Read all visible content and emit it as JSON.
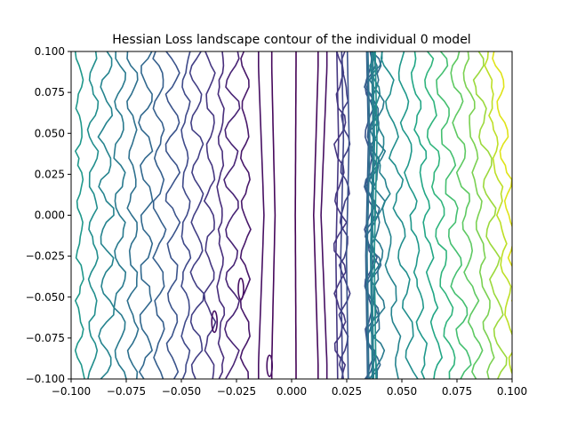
{
  "chart_data": {
    "type": "contour",
    "title": "Hessian Loss landscape contour of the individual 0 model",
    "xlabel": "",
    "ylabel": "",
    "xlim": [
      -0.1,
      0.1
    ],
    "ylim": [
      -0.1,
      0.1
    ],
    "grid": false,
    "colormap": "viridis",
    "x_ticks": [
      -0.1,
      -0.075,
      -0.05,
      -0.025,
      0.0,
      0.025,
      0.05,
      0.075,
      0.1
    ],
    "x_tick_labels": [
      "−0.100",
      "−0.075",
      "−0.050",
      "−0.025",
      "0.000",
      "0.025",
      "0.050",
      "0.075",
      "0.100"
    ],
    "y_ticks": [
      -0.1,
      -0.075,
      -0.05,
      -0.025,
      0.0,
      0.025,
      0.05,
      0.075,
      0.1
    ],
    "y_tick_labels": [
      "−0.100",
      "−0.075",
      "−0.050",
      "−0.025",
      "0.000",
      "0.025",
      "0.050",
      "0.075",
      "0.100"
    ],
    "contour_levels": [
      {
        "level": 0.0,
        "x_values": [
          0.002
        ],
        "color": "#440154"
      },
      {
        "level": 0.05,
        "x_values": [
          -0.009,
          0.012
        ],
        "color": "#46085c"
      },
      {
        "level": 0.1,
        "x_values": [
          -0.015,
          0.016
        ],
        "color": "#471063"
      },
      {
        "level": 0.15,
        "x_values": [
          -0.021
        ],
        "color": "#48186a"
      },
      {
        "level": 0.2,
        "x_values": [
          -0.027
        ],
        "color": "#482475"
      },
      {
        "level": 0.25,
        "x_values": [
          -0.032
        ],
        "color": "#472d7b"
      },
      {
        "level": 0.3,
        "x_values": [
          -0.037,
          0.022
        ],
        "color": "#453781"
      },
      {
        "level": 0.35,
        "x_values": [
          -0.043,
          0.024
        ],
        "color": "#423f85"
      },
      {
        "level": 0.4,
        "x_values": [
          -0.048
        ],
        "color": "#3e4989"
      },
      {
        "level": 0.45,
        "x_values": [
          -0.054,
          0.035
        ],
        "color": "#3a538b"
      },
      {
        "level": 0.5,
        "x_values": [
          -0.06,
          0.036
        ],
        "color": "#355f8d"
      },
      {
        "level": 0.55,
        "x_values": [
          -0.066,
          0.037
        ],
        "color": "#31688e"
      },
      {
        "level": 0.6,
        "x_values": [
          -0.072,
          0.038
        ],
        "color": "#2d708e"
      },
      {
        "level": 0.65,
        "x_values": [
          -0.078,
          0.039
        ],
        "color": "#297a8e"
      },
      {
        "level": 0.7,
        "x_values": [
          -0.084,
          0.043
        ],
        "color": "#25838e"
      },
      {
        "level": 0.75,
        "x_values": [
          -0.09,
          0.049
        ],
        "color": "#218e8d"
      },
      {
        "level": 0.8,
        "x_values": [
          -0.096,
          0.055
        ],
        "color": "#1f988b"
      },
      {
        "level": 0.85,
        "x_values": [
          0.061
        ],
        "color": "#21a685"
      },
      {
        "level": 0.9,
        "x_values": [
          0.067
        ],
        "color": "#2fb47c"
      },
      {
        "level": 0.95,
        "x_values": [
          0.073
        ],
        "color": "#44bf70"
      },
      {
        "level": 1.0,
        "x_values": [
          0.079
        ],
        "color": "#5ec962"
      },
      {
        "level": 1.05,
        "x_values": [
          0.085
        ],
        "color": "#7ad151"
      },
      {
        "level": 1.1,
        "x_values": [
          0.09
        ],
        "color": "#9bd93c"
      },
      {
        "level": 1.15,
        "x_values": [
          0.095
        ],
        "color": "#bddf26"
      },
      {
        "level": 1.2,
        "x_values": [
          0.099
        ],
        "color": "#dfe318"
      }
    ]
  }
}
